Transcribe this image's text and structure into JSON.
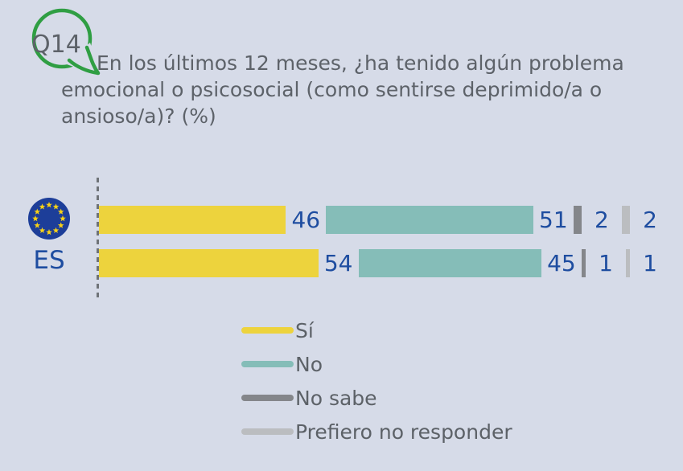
{
  "question": {
    "id": "Q14",
    "text": "En los últimos 12 meses, ¿ha tenido algún problema emocional o psicosocial (como sentirse deprimido/a o ansioso/a)? (%)"
  },
  "chart_data": {
    "type": "bar",
    "orientation": "horizontal",
    "value_unit": "%",
    "categories": [
      "EU",
      "ES"
    ],
    "series": [
      {
        "name": "Sí",
        "color": "#edd33d",
        "values": [
          46,
          54
        ]
      },
      {
        "name": "No",
        "color": "#85bdb8",
        "values": [
          51,
          45
        ]
      },
      {
        "name": "No sabe",
        "color": "#84868a",
        "values": [
          2,
          1
        ]
      },
      {
        "name": "Prefiero no responder",
        "color": "#bbbdc0",
        "values": [
          2,
          1
        ]
      }
    ],
    "legend_position": "bottom-center",
    "axis_baseline": "dotted-vertical-line-at-zero",
    "value_label_color": "#1e4da0"
  },
  "colors": {
    "background": "#d6dbe8",
    "bubble_green": "#2f9e43",
    "text_gray": "#5d6269",
    "value_blue": "#1e4da0",
    "eu_flag_blue": "#1d3e99",
    "eu_star_yellow": "#f7d117"
  }
}
